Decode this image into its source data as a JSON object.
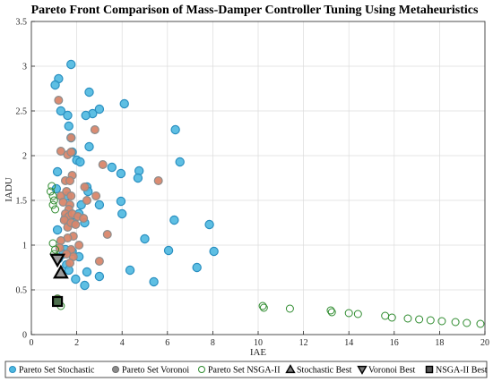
{
  "chart_data": {
    "type": "scatter",
    "title": "Pareto Front Comparison of Mass-Damper Controller Tuning Using Metaheuristics",
    "xlabel": "IAE",
    "ylabel": "IADU",
    "xlim": [
      0,
      20
    ],
    "ylim": [
      0,
      3.5
    ],
    "xticks": [
      0,
      2,
      4,
      6,
      8,
      10,
      12,
      14,
      16,
      18,
      20
    ],
    "yticks": [
      0,
      0.5,
      1,
      1.5,
      2,
      2.5,
      3,
      3.5
    ],
    "xtick_labels": [
      "0",
      "2",
      "4",
      "6",
      "8",
      "10",
      "12",
      "14",
      "16",
      "18",
      "20"
    ],
    "ytick_labels": [
      "0",
      "0.5",
      "1",
      "1.5",
      "2",
      "2.5",
      "3",
      "3.5"
    ],
    "grid": true,
    "legend_position": "bottom",
    "colors": {
      "stochastic": "#4db8e0",
      "stochastic_edge": "#2a8fc0",
      "voronoi": "#d9866a",
      "voronoi_edge": "#8c8c8c",
      "nsga_edge": "#2e8b2e",
      "grid": "#dcdcdc"
    },
    "series": [
      {
        "name": "Pareto Set Stochastic",
        "marker": "circle-filled",
        "points": [
          [
            1.75,
            3.02
          ],
          [
            1.2,
            2.86
          ],
          [
            1.05,
            2.79
          ],
          [
            1.6,
            2.45
          ],
          [
            2.55,
            2.71
          ],
          [
            1.3,
            2.5
          ],
          [
            1.65,
            2.33
          ],
          [
            2.7,
            2.47
          ],
          [
            2.4,
            2.45
          ],
          [
            3.0,
            2.52
          ],
          [
            4.1,
            2.58
          ],
          [
            6.35,
            2.29
          ],
          [
            1.75,
            2.2
          ],
          [
            2.55,
            2.1
          ],
          [
            1.8,
            2.04
          ],
          [
            2.0,
            1.95
          ],
          [
            2.15,
            1.93
          ],
          [
            6.55,
            1.93
          ],
          [
            3.55,
            1.87
          ],
          [
            4.75,
            1.83
          ],
          [
            3.95,
            1.8
          ],
          [
            4.7,
            1.75
          ],
          [
            1.15,
            1.82
          ],
          [
            1.1,
            1.63
          ],
          [
            2.45,
            1.65
          ],
          [
            2.5,
            1.6
          ],
          [
            1.6,
            1.55
          ],
          [
            2.2,
            1.45
          ],
          [
            3.0,
            1.45
          ],
          [
            3.95,
            1.49
          ],
          [
            4.0,
            1.35
          ],
          [
            2.1,
            1.35
          ],
          [
            1.5,
            1.3
          ],
          [
            2.35,
            1.25
          ],
          [
            1.85,
            1.25
          ],
          [
            6.3,
            1.28
          ],
          [
            7.85,
            1.23
          ],
          [
            1.15,
            1.17
          ],
          [
            5.0,
            1.07
          ],
          [
            6.05,
            0.94
          ],
          [
            8.05,
            0.93
          ],
          [
            1.5,
            0.95
          ],
          [
            1.8,
            0.93
          ],
          [
            2.1,
            0.87
          ],
          [
            1.55,
            0.78
          ],
          [
            1.65,
            0.72
          ],
          [
            2.45,
            0.7
          ],
          [
            3.0,
            0.65
          ],
          [
            1.95,
            0.62
          ],
          [
            2.35,
            0.55
          ],
          [
            4.35,
            0.72
          ],
          [
            7.3,
            0.75
          ],
          [
            5.4,
            0.59
          ],
          [
            1.2,
            0.85
          ],
          [
            1.4,
            0.9
          ]
        ]
      },
      {
        "name": "Pareto Set Voronoi",
        "marker": "circle-filled",
        "points": [
          [
            1.2,
            2.62
          ],
          [
            2.8,
            2.29
          ],
          [
            1.75,
            2.2
          ],
          [
            1.3,
            2.05
          ],
          [
            1.6,
            2.01
          ],
          [
            1.75,
            2.04
          ],
          [
            3.15,
            1.9
          ],
          [
            5.6,
            1.72
          ],
          [
            1.5,
            1.72
          ],
          [
            1.8,
            1.78
          ],
          [
            1.7,
            1.72
          ],
          [
            2.35,
            1.65
          ],
          [
            1.3,
            1.55
          ],
          [
            1.55,
            1.6
          ],
          [
            1.75,
            1.55
          ],
          [
            2.45,
            1.5
          ],
          [
            2.85,
            1.55
          ],
          [
            1.4,
            1.48
          ],
          [
            1.7,
            1.45
          ],
          [
            1.65,
            1.4
          ],
          [
            1.5,
            1.35
          ],
          [
            1.65,
            1.32
          ],
          [
            1.8,
            1.35
          ],
          [
            2.05,
            1.32
          ],
          [
            2.3,
            1.3
          ],
          [
            1.45,
            1.28
          ],
          [
            1.6,
            1.2
          ],
          [
            1.75,
            1.25
          ],
          [
            1.95,
            1.23
          ],
          [
            3.35,
            1.12
          ],
          [
            1.85,
            1.1
          ],
          [
            1.6,
            1.08
          ],
          [
            1.3,
            1.05
          ],
          [
            1.25,
            0.97
          ],
          [
            2.1,
            1.0
          ],
          [
            1.75,
            0.95
          ],
          [
            1.85,
            0.87
          ],
          [
            1.55,
            0.9
          ],
          [
            3.0,
            0.82
          ],
          [
            1.7,
            0.8
          ],
          [
            1.15,
            0.4
          ]
        ]
      },
      {
        "name": "Pareto Set NSGA-II",
        "marker": "circle-open",
        "points": [
          [
            0.9,
            1.66
          ],
          [
            0.85,
            1.6
          ],
          [
            0.95,
            1.55
          ],
          [
            1.0,
            1.5
          ],
          [
            0.95,
            1.45
          ],
          [
            1.05,
            1.4
          ],
          [
            0.95,
            1.02
          ],
          [
            1.05,
            0.95
          ],
          [
            1.0,
            0.9
          ],
          [
            1.1,
            0.87
          ],
          [
            1.15,
            0.4
          ],
          [
            1.3,
            0.32
          ],
          [
            10.2,
            0.32
          ],
          [
            10.25,
            0.3
          ],
          [
            11.4,
            0.29
          ],
          [
            13.2,
            0.27
          ],
          [
            13.25,
            0.25
          ],
          [
            14.0,
            0.24
          ],
          [
            14.4,
            0.23
          ],
          [
            15.6,
            0.21
          ],
          [
            15.9,
            0.19
          ],
          [
            16.6,
            0.18
          ],
          [
            17.1,
            0.17
          ],
          [
            17.6,
            0.16
          ],
          [
            18.1,
            0.15
          ],
          [
            18.7,
            0.14
          ],
          [
            19.2,
            0.13
          ],
          [
            19.8,
            0.12
          ]
        ]
      },
      {
        "name": "Stochastic Best",
        "marker": "triangle-up",
        "points": [
          [
            1.3,
            0.69
          ]
        ]
      },
      {
        "name": "Voronoi Best",
        "marker": "triangle-down",
        "points": [
          [
            1.15,
            0.84
          ]
        ]
      },
      {
        "name": "NSGA-II Best",
        "marker": "square",
        "points": [
          [
            1.15,
            0.37
          ]
        ]
      }
    ]
  }
}
